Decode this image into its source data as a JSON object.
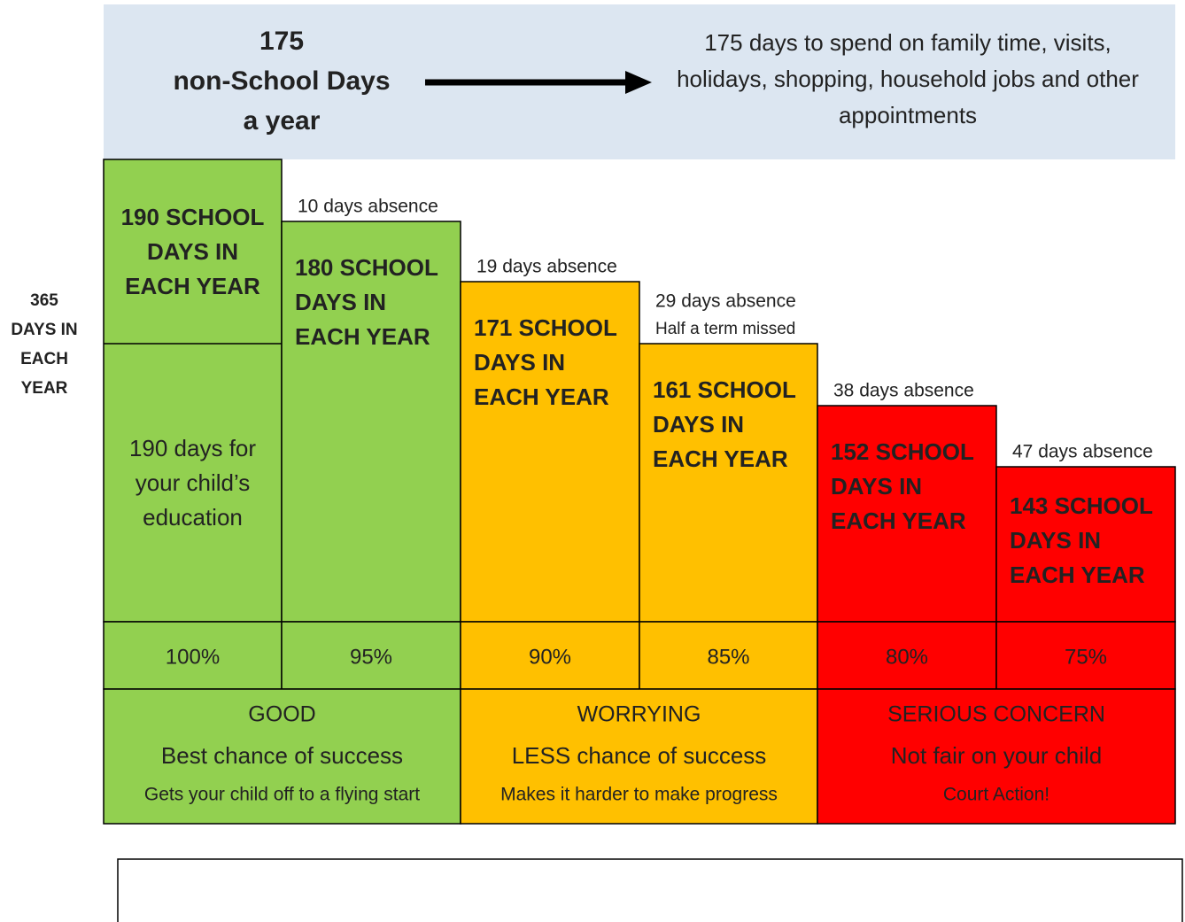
{
  "banner": {
    "left_lines": [
      "175",
      "non-School Days",
      "a year"
    ],
    "right_lines": [
      "175 days to spend on family time, visits,",
      "holidays, shopping, household jobs and other",
      "appointments"
    ]
  },
  "side_label": [
    "365",
    "DAYS IN",
    "EACH",
    "YEAR"
  ],
  "columns": [
    {
      "title_lines": [
        "190 SCHOOL",
        "DAYS IN",
        "EACH YEAR"
      ],
      "detail_lines": [
        "190 days for",
        "your child’s",
        "education"
      ],
      "percent": "100%"
    },
    {
      "absence_lines": [
        "10 days absence"
      ],
      "title_lines": [
        "180 SCHOOL",
        "DAYS IN",
        "EACH YEAR"
      ],
      "percent": "95%"
    },
    {
      "absence_lines": [
        "19 days absence"
      ],
      "title_lines": [
        "171 SCHOOL",
        "DAYS IN",
        "EACH YEAR"
      ],
      "percent": "90%"
    },
    {
      "absence_lines": [
        "29 days absence",
        "Half a term missed"
      ],
      "title_lines": [
        "161 SCHOOL",
        "DAYS IN",
        "EACH YEAR"
      ],
      "percent": "85%"
    },
    {
      "absence_lines": [
        "38 days absence"
      ],
      "title_lines": [
        "152 SCHOOL",
        "DAYS IN",
        "EACH YEAR"
      ],
      "percent": "80%"
    },
    {
      "absence_lines": [
        "47 days absence"
      ],
      "title_lines": [
        "143 SCHOOL",
        "DAYS IN",
        "EACH YEAR"
      ],
      "percent": "75%"
    }
  ],
  "groups": [
    {
      "title": "GOOD",
      "subtitle": "Best chance of success",
      "note": "Gets your child off to a flying start"
    },
    {
      "title": "WORRYING",
      "subtitle": "LESS chance of success",
      "note": "Makes it harder to make progress"
    },
    {
      "title": "SERIOUS CONCERN",
      "subtitle": "Not fair on your child",
      "note": "Court Action!"
    }
  ]
}
